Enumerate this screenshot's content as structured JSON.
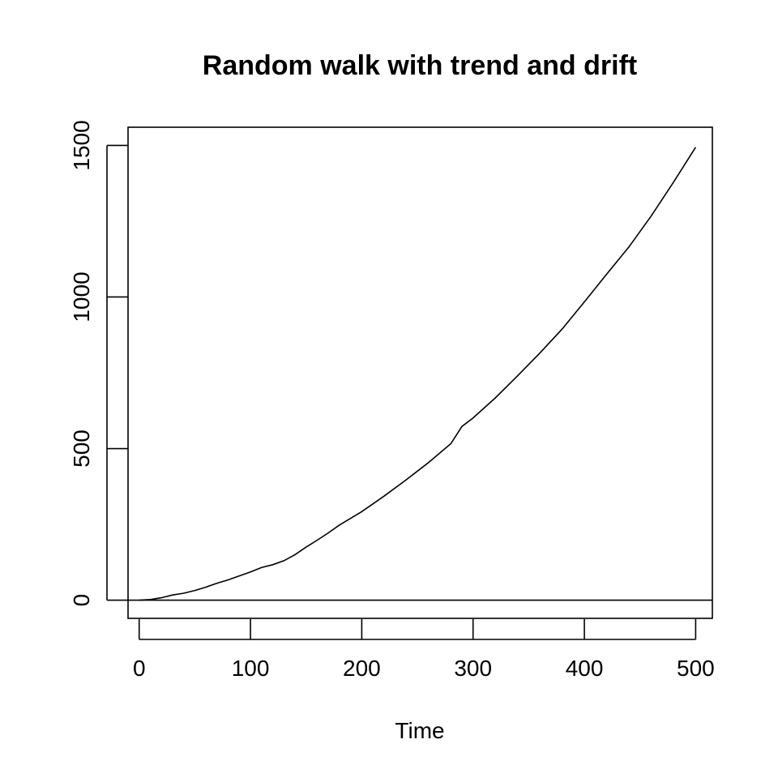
{
  "chart_data": {
    "type": "line",
    "title": "Random walk with trend and drift",
    "xlabel": "Time",
    "ylabel": "",
    "xlim": [
      -10,
      515
    ],
    "ylim": [
      -60,
      1560
    ],
    "x_ticks": [
      0,
      100,
      200,
      300,
      400,
      500
    ],
    "y_ticks": [
      0,
      500,
      1000,
      1500
    ],
    "grid": false,
    "legend": "none",
    "reference_lines": [
      {
        "orientation": "horizontal",
        "y": 0
      }
    ],
    "series": [
      {
        "color": "#000000",
        "x": [
          0,
          10,
          20,
          30,
          40,
          50,
          60,
          70,
          80,
          90,
          100,
          110,
          120,
          130,
          140,
          150,
          160,
          170,
          180,
          190,
          200,
          220,
          240,
          260,
          280,
          290,
          300,
          320,
          340,
          360,
          380,
          400,
          420,
          440,
          460,
          480,
          500
        ],
        "values": [
          0,
          2,
          8,
          17,
          23,
          32,
          43,
          56,
          67,
          80,
          93,
          108,
          117,
          130,
          150,
          175,
          198,
          222,
          248,
          270,
          292,
          343,
          397,
          454,
          516,
          573,
          601,
          667,
          740,
          815,
          894,
          984,
          1075,
          1165,
          1267,
          1378,
          1494
        ]
      }
    ]
  }
}
